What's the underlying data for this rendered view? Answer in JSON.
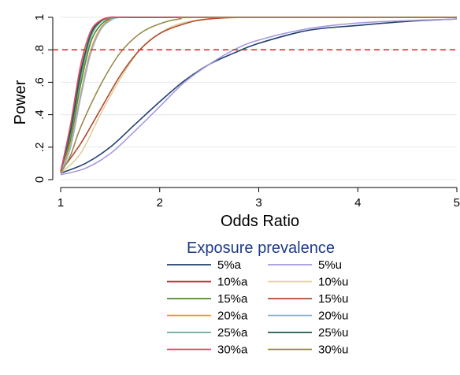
{
  "chart_data": {
    "type": "line",
    "xlabel": "Odds Ratio",
    "ylabel": "Power",
    "xlim": [
      1,
      5
    ],
    "ylim": [
      0,
      1
    ],
    "x_ticks": [
      "1",
      "2",
      "3",
      "4",
      "5"
    ],
    "y_ticks": [
      "0",
      ".2",
      ".4",
      ".6",
      ".8",
      "1"
    ],
    "reference_line": {
      "y": 0.8,
      "color": "#e0303a",
      "style": "dashed"
    },
    "legend_title": "Exposure prevalence",
    "legend_position": "bottom",
    "series": [
      {
        "name": "5%a",
        "color": "#1f3f6e",
        "x": [
          1,
          1.25,
          1.5,
          1.75,
          2,
          2.25,
          2.5,
          2.75,
          3,
          3.5,
          4,
          4.5,
          5
        ],
        "y": [
          0.04,
          0.1,
          0.2,
          0.34,
          0.48,
          0.61,
          0.71,
          0.78,
          0.84,
          0.92,
          0.95,
          0.975,
          0.99
        ]
      },
      {
        "name": "5%u",
        "color": "#a69ae0",
        "x": [
          1,
          1.25,
          1.5,
          1.75,
          2,
          2.25,
          2.5,
          2.75,
          3,
          3.5,
          4,
          4.5,
          5
        ],
        "y": [
          0.03,
          0.07,
          0.16,
          0.3,
          0.45,
          0.6,
          0.71,
          0.8,
          0.86,
          0.93,
          0.965,
          0.98,
          0.99
        ]
      },
      {
        "name": "10%a",
        "color": "#b0202a",
        "x": [
          1,
          1.1,
          1.2,
          1.3,
          1.4,
          1.5,
          1.6,
          1.8,
          2,
          2.5,
          5
        ],
        "y": [
          0.05,
          0.32,
          0.66,
          0.88,
          0.97,
          0.995,
          1,
          1,
          1,
          1,
          1
        ]
      },
      {
        "name": "10%u",
        "color": "#e0cf9a",
        "x": [
          1,
          1.2,
          1.4,
          1.6,
          1.8,
          2,
          2.2,
          2.5,
          3,
          5
        ],
        "y": [
          0.04,
          0.16,
          0.4,
          0.62,
          0.8,
          0.9,
          0.96,
          0.99,
          1,
          1
        ]
      },
      {
        "name": "15%a",
        "color": "#4d8a2f",
        "x": [
          1,
          1.1,
          1.2,
          1.3,
          1.4,
          1.5,
          1.6,
          1.8,
          2,
          5
        ],
        "y": [
          0.05,
          0.25,
          0.58,
          0.84,
          0.95,
          0.99,
          1,
          1,
          1,
          1
        ]
      },
      {
        "name": "15%u",
        "color": "#b04a30",
        "x": [
          1,
          1.2,
          1.4,
          1.6,
          1.8,
          2,
          2.25,
          2.5,
          3,
          5
        ],
        "y": [
          0.05,
          0.22,
          0.43,
          0.64,
          0.8,
          0.9,
          0.96,
          0.99,
          1,
          1
        ]
      },
      {
        "name": "20%a",
        "color": "#f39a2a",
        "x": [
          1,
          1.1,
          1.2,
          1.3,
          1.4,
          1.5,
          1.6,
          1.8,
          2,
          5
        ],
        "y": [
          0.05,
          0.22,
          0.52,
          0.79,
          0.93,
          0.985,
          1,
          1,
          1,
          1
        ]
      },
      {
        "name": "20%u",
        "color": "#8fb0d8",
        "x": [
          1,
          1.1,
          1.2,
          1.3,
          1.4,
          1.5,
          1.6,
          1.8,
          2,
          5
        ],
        "y": [
          0.04,
          0.2,
          0.5,
          0.77,
          0.92,
          0.98,
          1,
          1,
          1,
          1
        ]
      },
      {
        "name": "25%a",
        "color": "#6aa89a",
        "x": [
          1,
          1.1,
          1.2,
          1.3,
          1.4,
          1.5,
          1.6,
          1.8,
          2,
          5
        ],
        "y": [
          0.05,
          0.28,
          0.62,
          0.87,
          0.97,
          0.995,
          1,
          1,
          1,
          1
        ]
      },
      {
        "name": "25%u",
        "color": "#1f5a4a",
        "x": [
          1,
          1.1,
          1.2,
          1.3,
          1.4,
          1.5,
          1.6,
          1.8,
          2,
          5
        ],
        "y": [
          0.05,
          0.3,
          0.65,
          0.89,
          0.975,
          1,
          1,
          1,
          1,
          1
        ]
      },
      {
        "name": "30%a",
        "color": "#e04a6a",
        "x": [
          1,
          1.1,
          1.2,
          1.3,
          1.4,
          1.5,
          1.6,
          1.8,
          2,
          5
        ],
        "y": [
          0.05,
          0.34,
          0.7,
          0.91,
          0.98,
          1,
          1,
          1,
          1,
          1
        ]
      },
      {
        "name": "30%u",
        "color": "#9a8a4a",
        "x": [
          1,
          1.1,
          1.2,
          1.4,
          1.6,
          1.8,
          2,
          2.2,
          2.5,
          5
        ],
        "y": [
          0.04,
          0.15,
          0.32,
          0.58,
          0.78,
          0.9,
          0.96,
          0.99,
          1,
          1
        ]
      }
    ]
  }
}
